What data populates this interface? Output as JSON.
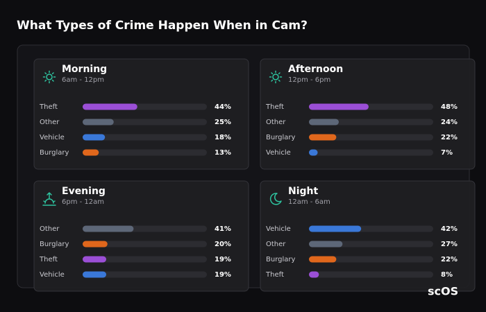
{
  "title": "What Types of Crime Happen When in Cam?",
  "logo": "scOS",
  "chart_data": [
    {
      "type": "bar",
      "title": "Morning",
      "subtitle": "6am - 12pm",
      "categories": [
        "Theft",
        "Other",
        "Vehicle",
        "Burglary"
      ],
      "values": [
        44,
        25,
        18,
        13
      ],
      "value_labels": [
        "44%",
        "25%",
        "18%",
        "13%"
      ],
      "colors": [
        "#9b4fd6",
        "#5d6778",
        "#3a78d8",
        "#e0671c"
      ],
      "xlim": [
        0,
        100
      ]
    },
    {
      "type": "bar",
      "title": "Afternoon",
      "subtitle": "12pm - 6pm",
      "categories": [
        "Theft",
        "Other",
        "Burglary",
        "Vehicle"
      ],
      "values": [
        48,
        24,
        22,
        7
      ],
      "value_labels": [
        "48%",
        "24%",
        "22%",
        "7%"
      ],
      "colors": [
        "#9b4fd6",
        "#5d6778",
        "#e0671c",
        "#3a78d8"
      ],
      "xlim": [
        0,
        100
      ]
    },
    {
      "type": "bar",
      "title": "Evening",
      "subtitle": "6pm - 12am",
      "categories": [
        "Other",
        "Burglary",
        "Theft",
        "Vehicle"
      ],
      "values": [
        41,
        20,
        19,
        19
      ],
      "value_labels": [
        "41%",
        "20%",
        "19%",
        "19%"
      ],
      "colors": [
        "#5d6778",
        "#e0671c",
        "#9b4fd6",
        "#3a78d8"
      ],
      "xlim": [
        0,
        100
      ]
    },
    {
      "type": "bar",
      "title": "Night",
      "subtitle": "12am - 6am",
      "categories": [
        "Vehicle",
        "Other",
        "Burglary",
        "Theft"
      ],
      "values": [
        42,
        27,
        22,
        8
      ],
      "value_labels": [
        "42%",
        "27%",
        "22%",
        "8%"
      ],
      "colors": [
        "#3a78d8",
        "#5d6778",
        "#e0671c",
        "#9b4fd6"
      ],
      "xlim": [
        0,
        100
      ]
    }
  ]
}
